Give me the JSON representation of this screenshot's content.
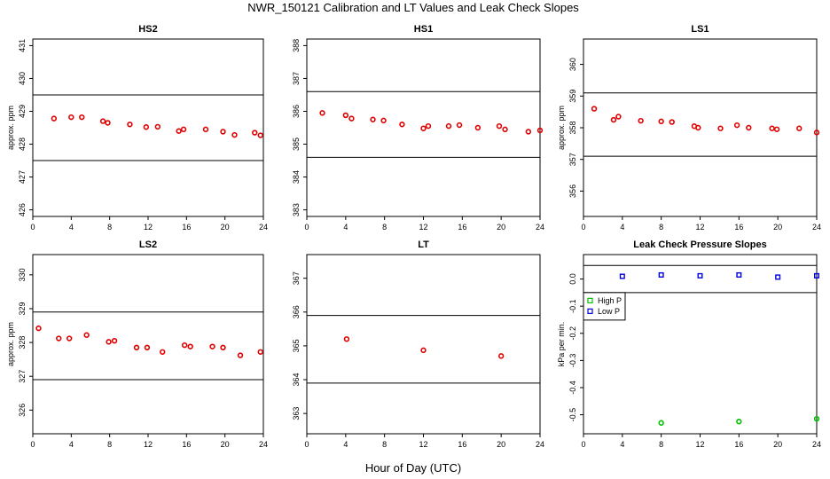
{
  "figure": {
    "title": "NWR_150121  Calibration and LT Values and Leak Check Slopes",
    "common_xlabel": "Hour of Day (UTC)"
  },
  "colors": {
    "points_red": "#e00000",
    "high_p": "#00c000",
    "low_p": "#0000e0",
    "line": "#000000"
  },
  "chart_data": [
    {
      "type": "scatter",
      "title": "HS2",
      "ylabel": "approx. ppm",
      "xlim": [
        0,
        24
      ],
      "ylim": [
        425.8,
        431.2
      ],
      "xticks": [
        "0",
        "4",
        "8",
        "12",
        "16",
        "20",
        "24"
      ],
      "yticks": [
        "426",
        "427",
        "428",
        "429",
        "430",
        "431"
      ],
      "hlines": [
        427.5,
        429.5
      ],
      "series": [
        {
          "marker": "circle",
          "x": [
            2.2,
            4.0,
            5.1,
            7.3,
            7.8,
            10.1,
            11.8,
            13.0,
            15.2,
            15.7,
            18.0,
            19.8,
            21.0,
            23.1,
            23.7
          ],
          "y": [
            428.78,
            428.82,
            428.82,
            428.7,
            428.65,
            428.6,
            428.52,
            428.53,
            428.4,
            428.45,
            428.45,
            428.38,
            428.28,
            428.35,
            428.27
          ]
        }
      ]
    },
    {
      "type": "scatter",
      "title": "HS1",
      "ylabel": "",
      "xlim": [
        0,
        24
      ],
      "ylim": [
        382.8,
        388.2
      ],
      "xticks": [
        "0",
        "4",
        "8",
        "12",
        "16",
        "20",
        "24"
      ],
      "yticks": [
        "383",
        "384",
        "385",
        "386",
        "387",
        "388"
      ],
      "hlines": [
        384.6,
        386.6
      ],
      "series": [
        {
          "marker": "circle",
          "x": [
            1.6,
            4.0,
            4.6,
            6.8,
            7.9,
            9.8,
            12.0,
            12.5,
            14.6,
            15.7,
            17.6,
            19.8,
            20.4,
            22.8,
            24.0
          ],
          "y": [
            385.95,
            385.88,
            385.78,
            385.75,
            385.72,
            385.6,
            385.48,
            385.55,
            385.55,
            385.58,
            385.5,
            385.55,
            385.45,
            385.38,
            385.42
          ]
        }
      ]
    },
    {
      "type": "scatter",
      "title": "LS1",
      "ylabel": "approx. ppm",
      "xlim": [
        0,
        24
      ],
      "ylim": [
        355.2,
        360.8
      ],
      "xticks": [
        "0",
        "4",
        "8",
        "12",
        "16",
        "20",
        "24"
      ],
      "yticks": [
        "356",
        "357",
        "358",
        "359",
        "360"
      ],
      "hlines": [
        357.1,
        359.1
      ],
      "series": [
        {
          "marker": "circle",
          "x": [
            1.1,
            3.1,
            3.6,
            5.9,
            8.0,
            9.1,
            11.4,
            11.8,
            14.1,
            15.8,
            17.0,
            19.4,
            19.9,
            22.2,
            24.0
          ],
          "y": [
            358.6,
            358.25,
            358.35,
            358.22,
            358.2,
            358.18,
            358.05,
            358.0,
            357.98,
            358.08,
            358.0,
            357.98,
            357.95,
            357.98,
            357.85
          ]
        }
      ]
    },
    {
      "type": "scatter",
      "title": "LS2",
      "ylabel": "approx. ppm",
      "xlim": [
        0,
        24
      ],
      "ylim": [
        325.3,
        330.6
      ],
      "xticks": [
        "0",
        "4",
        "8",
        "12",
        "16",
        "20",
        "24"
      ],
      "yticks": [
        "326",
        "327",
        "328",
        "329",
        "330"
      ],
      "hlines": [
        326.9,
        328.9
      ],
      "series": [
        {
          "marker": "circle",
          "x": [
            0.6,
            2.7,
            3.8,
            5.6,
            7.9,
            8.5,
            10.8,
            11.9,
            13.5,
            15.8,
            16.4,
            18.7,
            19.8,
            21.6,
            23.7
          ],
          "y": [
            328.42,
            328.12,
            328.12,
            328.22,
            328.02,
            328.05,
            327.85,
            327.85,
            327.72,
            327.92,
            327.88,
            327.88,
            327.85,
            327.62,
            327.72
          ]
        }
      ]
    },
    {
      "type": "scatter",
      "title": "LT",
      "ylabel": "",
      "xlim": [
        0,
        24
      ],
      "ylim": [
        362.4,
        367.7
      ],
      "xticks": [
        "0",
        "4",
        "8",
        "12",
        "16",
        "20",
        "24"
      ],
      "yticks": [
        "363",
        "364",
        "365",
        "366",
        "367"
      ],
      "hlines": [
        363.9,
        365.9
      ],
      "series": [
        {
          "marker": "circle",
          "x": [
            4.1,
            12.0,
            20.0
          ],
          "y": [
            365.2,
            364.87,
            364.7
          ]
        }
      ]
    },
    {
      "type": "scatter",
      "title": "Leak Check Pressure Slopes",
      "ylabel": "kPa per min.",
      "xlim": [
        0,
        24
      ],
      "ylim": [
        -0.57,
        0.09
      ],
      "xticks": [
        "0",
        "4",
        "8",
        "12",
        "16",
        "20",
        "24"
      ],
      "yticks": [
        "-0.5",
        "-0.4",
        "-0.3",
        "-0.2",
        "-0.1",
        "0.0"
      ],
      "hlines": [
        -0.05,
        0.05
      ],
      "legend": {
        "placement": "left",
        "entries": [
          "High P",
          "Low P"
        ]
      },
      "series": [
        {
          "name": "High P",
          "marker": "circle",
          "color": "#00c000",
          "x": [
            8.0,
            16.0,
            24.0
          ],
          "y": [
            -0.53,
            -0.525,
            -0.515
          ]
        },
        {
          "name": "Low P",
          "marker": "square",
          "color": "#0000e0",
          "x": [
            4.0,
            8.0,
            12.0,
            16.0,
            20.0,
            24.0
          ],
          "y": [
            0.01,
            0.015,
            0.012,
            0.015,
            0.007,
            0.012
          ]
        }
      ]
    }
  ]
}
